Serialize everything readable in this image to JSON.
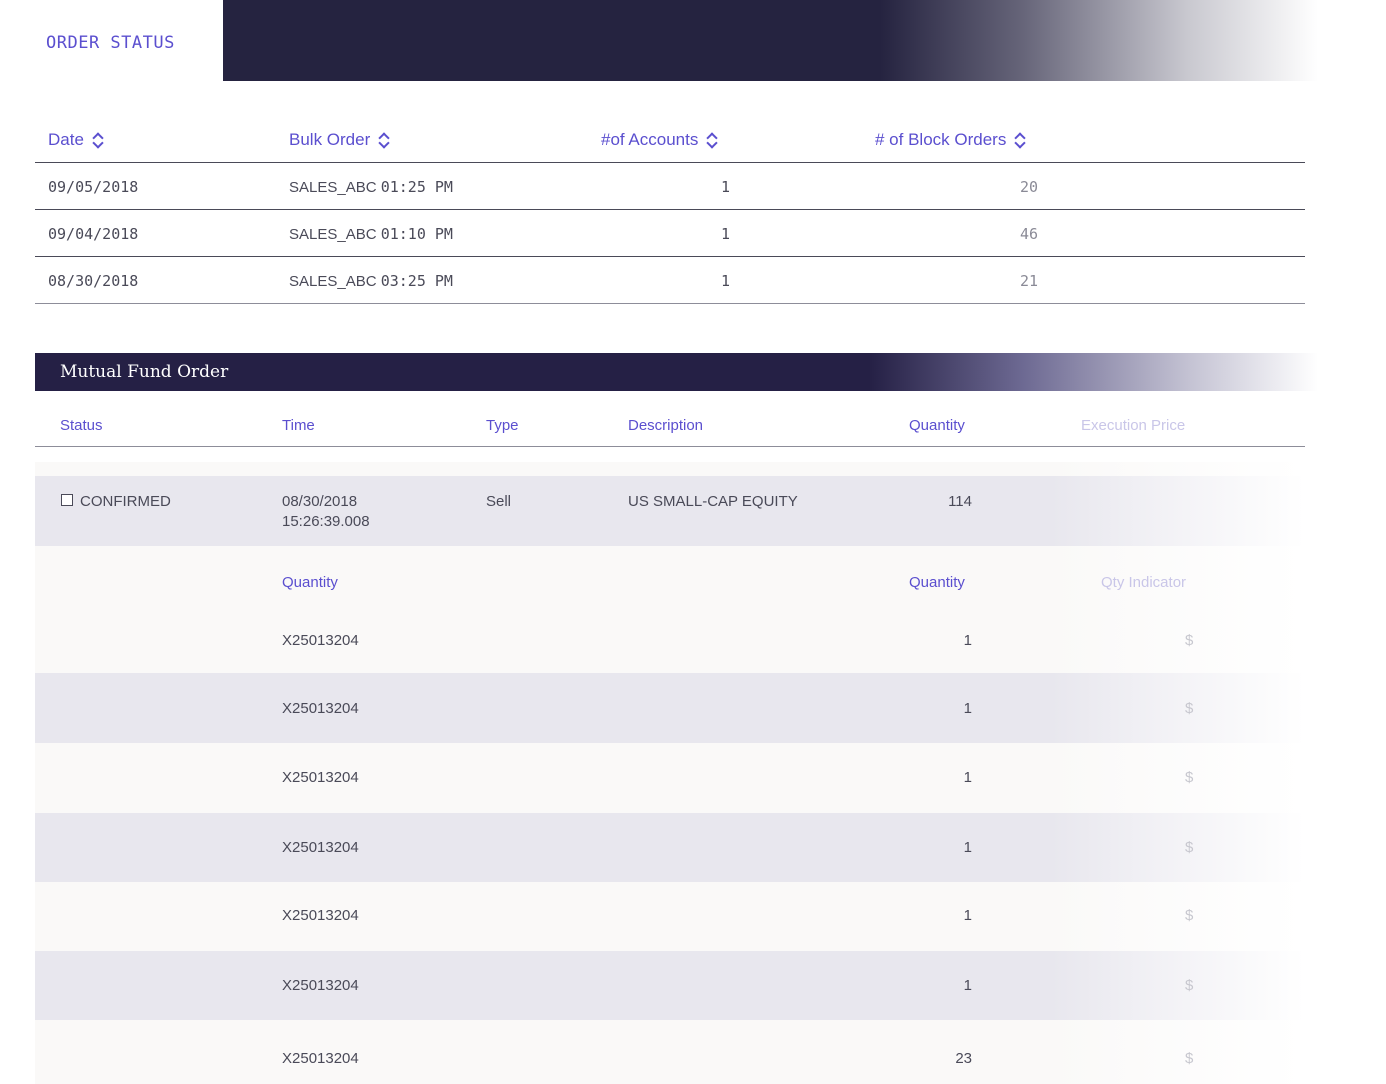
{
  "header": {
    "tab_label": "ORDER STATUS"
  },
  "order_status": {
    "columns": [
      "Date",
      "Bulk Order",
      "#of Accounts",
      "# of Block Orders"
    ],
    "rows": [
      {
        "date": "09/05/2018",
        "bulk_order_name": "SALES_ABC",
        "bulk_order_time": "01:25 PM",
        "accounts": "1",
        "block_orders": "20"
      },
      {
        "date": "09/04/2018",
        "bulk_order_name": "SALES_ABC",
        "bulk_order_time": "01:10 PM",
        "accounts": "1",
        "block_orders": "46"
      },
      {
        "date": "08/30/2018",
        "bulk_order_name": "SALES_ABC",
        "bulk_order_time": "03:25 PM",
        "accounts": "1",
        "block_orders": "21"
      }
    ]
  },
  "mutual_fund": {
    "title": "Mutual Fund Order",
    "columns": [
      "Status",
      "Time",
      "Type",
      "Description",
      "Quantity",
      "Execution Price"
    ],
    "order": {
      "status": "CONFIRMED",
      "date": "08/30/2018",
      "time": "15:26:39.008",
      "type": "Sell",
      "description": "US SMALL-CAP EQUITY",
      "quantity": "114"
    },
    "sub_columns": [
      "Quantity",
      "Quantity",
      "Qty Indicator"
    ],
    "sub_rows": [
      {
        "id": "X25013204",
        "quantity": "1",
        "indicator": "$"
      },
      {
        "id": "X25013204",
        "quantity": "1",
        "indicator": "$"
      },
      {
        "id": "X25013204",
        "quantity": "1",
        "indicator": "$"
      },
      {
        "id": "X25013204",
        "quantity": "1",
        "indicator": "$"
      },
      {
        "id": "X25013204",
        "quantity": "1",
        "indicator": "$"
      },
      {
        "id": "X25013204",
        "quantity": "1",
        "indicator": "$"
      },
      {
        "id": "X25013204",
        "quantity": "23",
        "indicator": "$"
      }
    ]
  }
}
